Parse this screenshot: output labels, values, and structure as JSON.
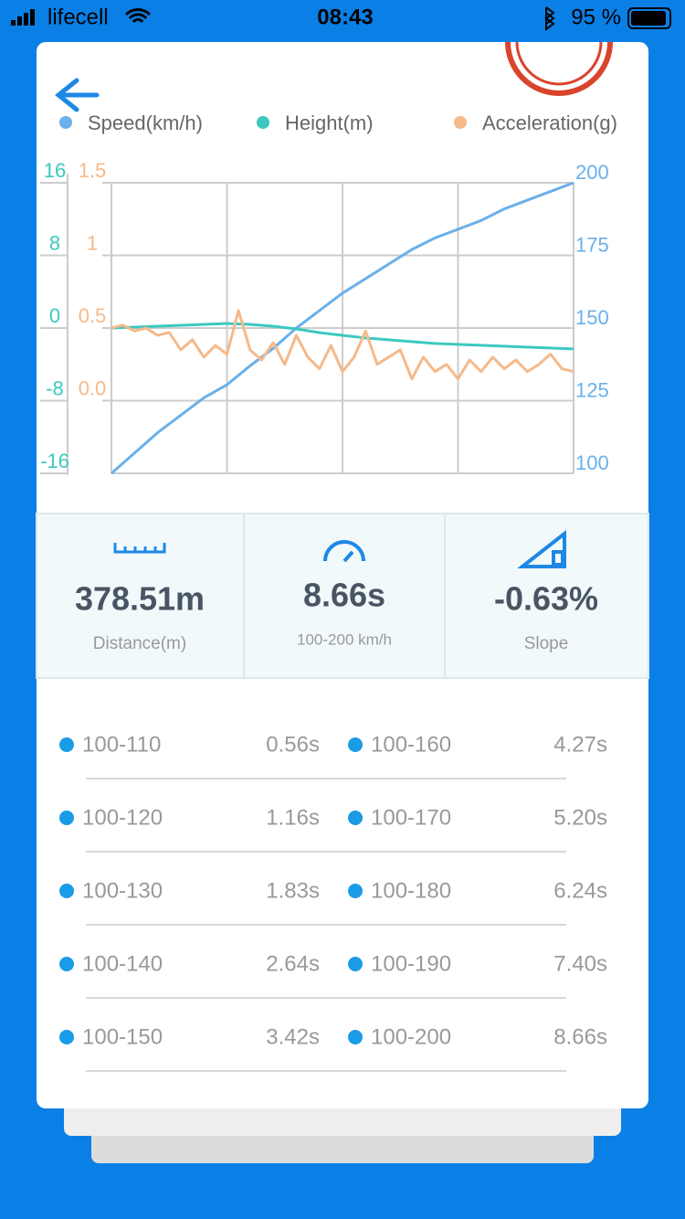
{
  "status": {
    "carrier": "lifecell",
    "time": "08:43",
    "battery": "95 %"
  },
  "chart_data": {
    "type": "line",
    "series": [
      {
        "name": "Speed(km/h)",
        "color": "#6ab0ea",
        "axis": "y3",
        "values": [
          100,
          107,
          114,
          120,
          126,
          130.5,
          137,
          143,
          150,
          156,
          162,
          167,
          172,
          177,
          181,
          184,
          187,
          191,
          194,
          197,
          200
        ]
      },
      {
        "name": "Height(m)",
        "color": "#3cc8c0",
        "axis": "y",
        "values": [
          0,
          0.1,
          0.2,
          0.3,
          0.4,
          0.5,
          0.4,
          0.2,
          -0.1,
          -0.5,
          -0.8,
          -1.1,
          -1.3,
          -1.5,
          -1.7,
          -1.8,
          -1.9,
          -2.0,
          -2.1,
          -2.2,
          -2.3
        ]
      },
      {
        "name": "Acceleration(g)",
        "color": "#f5b98a",
        "axis": "y2",
        "values": [
          0.5,
          0.52,
          0.48,
          0.5,
          0.45,
          0.47,
          0.35,
          0.42,
          0.3,
          0.38,
          0.32,
          0.62,
          0.35,
          0.28,
          0.4,
          0.25,
          0.45,
          0.3,
          0.22,
          0.38,
          0.2,
          0.3,
          0.48,
          0.25,
          0.3,
          0.35,
          0.15,
          0.3,
          0.2,
          0.25,
          0.15,
          0.28,
          0.2,
          0.3,
          0.22,
          0.28,
          0.2,
          0.25,
          0.32,
          0.22,
          0.2
        ]
      }
    ],
    "ylim": [
      -16,
      16
    ],
    "yticks": [
      16,
      8,
      0,
      -8,
      -16
    ],
    "y2lim": [
      -0.5,
      1.5
    ],
    "y2ticks": [
      1.5,
      1,
      0.5,
      {
        "value": 0,
        "label": "0.0"
      }
    ],
    "y3lim": [
      100,
      200
    ],
    "y3ticks": [
      200,
      175,
      150,
      125,
      100
    ],
    "grid": true
  },
  "stats": [
    {
      "value": "378.51m",
      "label": "Distance(m)"
    },
    {
      "value": "8.66s",
      "label": "100-200 km/h"
    },
    {
      "value": "-0.63%",
      "label": "Slope"
    }
  ],
  "splits": [
    {
      "range": "100-110",
      "time": "0.56s"
    },
    {
      "range": "100-160",
      "time": "4.27s"
    },
    {
      "range": "100-120",
      "time": "1.16s"
    },
    {
      "range": "100-170",
      "time": "5.20s"
    },
    {
      "range": "100-130",
      "time": "1.83s"
    },
    {
      "range": "100-180",
      "time": "6.24s"
    },
    {
      "range": "100-140",
      "time": "2.64s"
    },
    {
      "range": "100-190",
      "time": "7.40s"
    },
    {
      "range": "100-150",
      "time": "3.42s"
    },
    {
      "range": "100-200",
      "time": "8.66s"
    }
  ]
}
